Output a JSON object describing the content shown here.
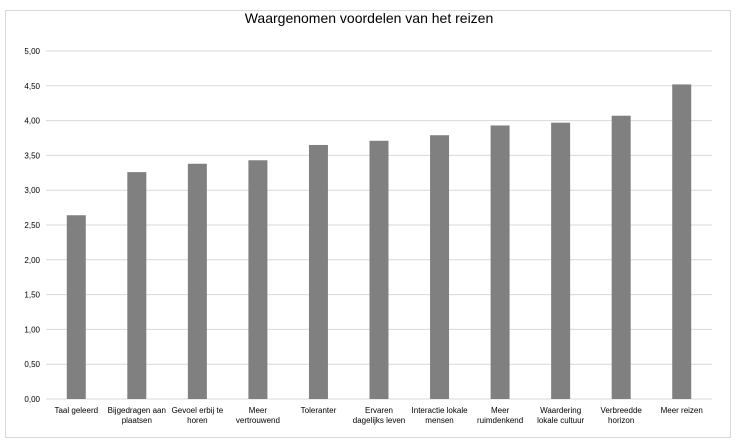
{
  "chart_data": {
    "type": "bar",
    "title": "Waargenomen voordelen van het reizen",
    "categories": [
      [
        "Taal geleerd"
      ],
      [
        "Bijgedragen aan",
        "plaatsen"
      ],
      [
        "Gevoel erbij te",
        "horen"
      ],
      [
        "Meer",
        "vertrouwend"
      ],
      [
        "Toleranter"
      ],
      [
        "Ervaren",
        "dagelijks leven"
      ],
      [
        "Interactie lokale",
        "mensen"
      ],
      [
        "Meer",
        "ruimdenkend"
      ],
      [
        "Waardering",
        "lokale cultuur"
      ],
      [
        "Verbreedde",
        "horizon"
      ],
      [
        "Meer reizen"
      ]
    ],
    "values": [
      2.64,
      3.26,
      3.38,
      3.43,
      3.65,
      3.71,
      3.79,
      3.93,
      3.97,
      4.07,
      4.52
    ],
    "ylim": [
      0,
      5
    ],
    "yticks": [
      "0,00",
      "0,50",
      "1,00",
      "1,50",
      "2,00",
      "2,50",
      "3,00",
      "3,50",
      "4,00",
      "4,50",
      "5,00"
    ],
    "grid": true,
    "bar_color": "#808080",
    "grid_color": "#d9d9d9"
  }
}
